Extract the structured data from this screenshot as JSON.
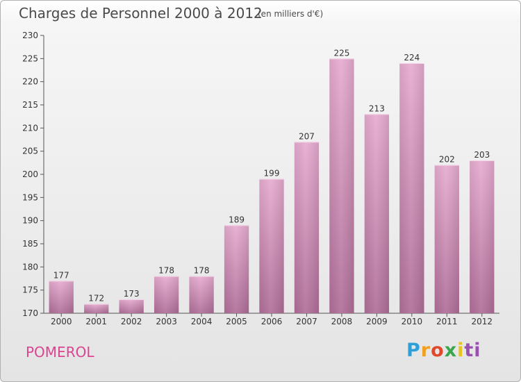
{
  "header": {
    "title": "Charges de Personnel 2000 à 2012",
    "subtitle": "(en milliers d'€)"
  },
  "footer": {
    "commune": "POMEROL",
    "logo_parts": [
      "P",
      "r",
      "o",
      "x",
      "i",
      "ti"
    ]
  },
  "colors": {
    "bar_top": "#e6acd0",
    "bar_bottom": "#b06e98",
    "accent_text": "#d9468f"
  },
  "chart_data": {
    "type": "bar",
    "title": "Charges de Personnel 2000 à 2012",
    "subtitle": "(en milliers d'€)",
    "xlabel": "",
    "ylabel": "",
    "categories": [
      "2000",
      "2001",
      "2002",
      "2003",
      "2004",
      "2005",
      "2006",
      "2007",
      "2008",
      "2009",
      "2010",
      "2011",
      "2012"
    ],
    "values": [
      177,
      172,
      173,
      178,
      178,
      189,
      199,
      207,
      225,
      213,
      224,
      202,
      203
    ],
    "ylim": [
      170,
      230
    ],
    "yticks": [
      170,
      175,
      180,
      185,
      190,
      195,
      200,
      205,
      210,
      215,
      220,
      225,
      230
    ],
    "grid": false,
    "legend": "none"
  }
}
